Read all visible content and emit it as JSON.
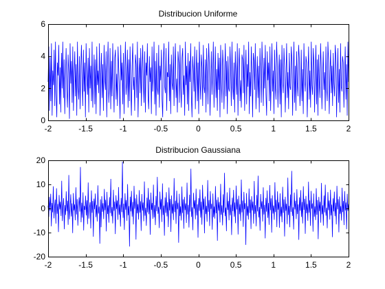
{
  "chart_data": [
    {
      "type": "line",
      "title": "Distribucion Uniforme",
      "xlabel": "",
      "ylabel": "",
      "xlim": [
        -2,
        2
      ],
      "ylim": [
        0,
        6
      ],
      "x_ticks": [
        -2,
        -1.5,
        -1,
        -0.5,
        0,
        0.5,
        1,
        1.5,
        2
      ],
      "x_tick_labels": [
        "-2",
        "-1.5",
        "-1",
        "-0.5",
        "0",
        "0.5",
        "1",
        "1.5",
        "2"
      ],
      "y_ticks": [
        0,
        2,
        4,
        6
      ],
      "y_tick_labels": [
        "0",
        "2",
        "4",
        "6"
      ],
      "grid": false,
      "legend": "none",
      "series_color": "#0000ff",
      "series": [
        {
          "x_range": [
            -2,
            2
          ],
          "values": [
            2.4,
            4.6,
            0.6,
            3.9,
            1.2,
            4.8,
            0.3,
            3.1,
            2.2,
            4.4,
            0.9,
            4.9,
            1.7,
            0.2,
            3.6,
            2.8,
            4.7,
            1.0,
            3.3,
            0.5,
            4.2,
            2.0,
            4.9,
            1.4,
            3.8,
            0.4,
            2.6,
            4.5,
            1.9,
            0.8,
            4.1,
            3.0,
            0.1,
            4.8,
            2.3,
            3.7,
            1.1,
            4.6,
            0.6,
            2.9,
            4.3,
            1.5,
            3.5,
            0.3,
            4.9,
            2.1,
            1.3,
            4.0,
            0.7,
            3.2,
            4.7,
            2.5,
            0.9,
            4.4,
            1.8,
            3.6,
            0.2,
            4.8,
            2.7,
            1.6,
            3.9,
            0.5,
            4.5,
            2.0,
            3.4,
            1.2,
            4.9,
            0.8,
            2.4,
            4.1,
            1.0,
            3.8,
            0.4,
            4.6,
            2.2,
            3.1,
            1.7,
            4.8,
            0.3,
            2.8,
            4.2,
            1.4,
            3.5,
            0.6,
            4.7,
            2.6,
            1.9,
            4.3,
            0.2,
            3.3,
            4.9,
            1.1,
            2.0,
            4.5,
            0.7,
            3.7,
            1.5,
            4.8,
            2.4,
            0.5,
            3.9,
            4.4,
            1.3,
            2.9,
            0.9,
            4.6,
            3.2,
            1.8,
            0.1,
            4.7,
            2.5,
            3.6,
            1.0,
            4.2,
            0.4,
            3.0,
            4.9,
            1.6,
            2.3,
            4.4,
            0.8,
            3.8,
            1.2,
            4.6,
            2.1,
            0.3,
            3.4,
            4.8,
            1.9,
            2.7,
            0.6,
            4.1,
            3.5,
            1.4,
            4.9,
            0.2,
            2.6,
            3.9,
            1.7,
            4.5,
            0.9,
            3.1,
            4.7,
            2.2,
            1.1,
            4.3,
            0.5,
            3.6,
            2.8,
            4.8,
            1.5,
            0.7,
            4.0,
            2.4,
            3.3,
            0.4,
            4.6,
            1.8,
            2.9,
            4.9,
            1.0,
            3.7,
            0.3,
            4.2,
            2.0,
            1.6,
            4.7,
            0.8,
            3.4,
            2.5,
            4.4,
            1.3,
            0.2,
            3.8,
            4.8,
            2.1,
            1.7,
            4.5,
            0.6,
            3.0,
            2.7,
            4.9,
            1.2,
            3.5,
            0.4,
            4.1,
            2.3,
            1.9,
            4.6,
            0.9,
            3.2,
            4.8,
            1.4,
            2.6,
            0.5,
            4.3,
            3.6,
            1.1,
            4.7,
            2.0,
            0.8,
            3.9,
            4.5,
            1.6,
            2.8,
            0.3,
            4.9,
            2.2,
            3.4,
            1.0,
            4.2,
            0.6,
            3.7,
            2.4,
            4.8,
            1.5,
            0.2,
            4.0,
            3.1,
            1.8,
            4.6,
            0.7,
            2.9,
            4.4,
            1.2,
            3.6,
            0.4,
            4.9,
            2.5,
            1.3,
            4.1,
            3.3,
            0.9,
            4.7,
            2.1,
            1.7,
            3.8,
            0.5,
            4.5,
            2.7,
            1.0,
            4.8,
            3.5,
            0.3,
            2.3,
            4.3,
            1.6,
            3.0,
            4.9,
            0.8,
            2.6,
            4.6,
            1.4,
            3.2,
            0.6,
            4.2,
            1.9,
            3.9,
            0.2,
            4.7,
            2.4,
            1.1,
            4.4,
            3.4,
            0.7,
            2.8,
            4.8,
            1.5,
            3.7,
            0.4,
            4.0,
            2.0,
            1.8,
            4.6,
            3.1,
            0.9,
            4.9,
            2.2,
            1.3,
            3.6,
            0.5,
            4.3,
            2.7,
            1.6,
            4.8,
            0.3,
            3.3,
            4.5,
            1.2,
            2.5,
            0.8,
            4.1,
            3.8,
            1.7,
            4.7,
            0.6,
            2.9,
            4.4,
            1.0,
            3.5,
            2.1,
            4.9,
            0.4,
            3.0,
            1.5,
            4.6,
            2.6,
            0.2,
            4.2,
            3.7,
            1.9,
            4.8,
            0.7,
            2.3,
            4.0,
            1.4,
            3.4,
            0.5,
            4.5,
            2.8,
            1.1,
            4.9,
            3.2,
            0.9,
            3.9,
            2.0,
            4.7,
            1.6,
            0.3,
            4.3,
            2.5,
            3.6,
            1.2,
            4.6,
            0.6,
            2.7,
            4.8,
            1.8,
            3.1,
            0.4,
            4.4,
            2.2,
            1.3,
            4.9,
            3.5,
            0.8,
            2.9,
            4.1,
            1.0,
            3.8,
            0.2,
            4.7,
            2.4,
            1.7,
            4.5,
            3.3,
            0.5,
            2.6,
            4.8,
            1.4,
            3.0,
            0.7,
            4.2,
            2.1,
            1.9,
            4.6,
            3.7,
            0.3,
            2.8,
            4.9,
            1.1,
            3.4,
            0.6,
            4.3,
            2.3,
            1.5,
            4.7,
            3.9,
            0.9,
            2.0,
            4.4,
            1.2,
            3.2,
            0.4,
            4.8,
            2.5,
            1.8,
            4.0,
            3.6,
            0.2,
            2.7,
            4.6,
            1.3,
            3.1,
            0.8,
            4.9,
            2.2,
            1.6,
            4.5,
            3.5,
            0.5,
            2.9,
            4.7,
            1.0,
            3.8,
            0.3,
            4.1,
            2.4,
            1.4,
            4.8,
            3.3,
            0.7,
            2.6,
            4.3,
            1.9,
            3.0,
            0.6,
            4.6,
            2.0,
            1.2,
            4.9,
            3.7,
            0.4,
            2.8,
            4.4,
            1.7,
            3.4,
            0.9,
            4.2,
            2.3,
            1.5,
            4.7,
            3.9,
            0.2,
            2.5,
            4.5,
            1.1,
            3.2,
            0.5,
            4.8,
            2.1,
            1.8,
            4.0,
            3.6,
            0.8,
            2.7,
            4.6,
            1.3,
            3.5,
            0.3,
            4.9,
            2.4
          ]
        }
      ]
    },
    {
      "type": "line",
      "title": "Distribucion Gaussiana",
      "xlabel": "",
      "ylabel": "",
      "xlim": [
        -2,
        2
      ],
      "ylim": [
        -20,
        20
      ],
      "x_ticks": [
        -2,
        -1.5,
        -1,
        -0.5,
        0,
        0.5,
        1,
        1.5,
        2
      ],
      "x_tick_labels": [
        "-2",
        "-1.5",
        "-1",
        "-0.5",
        "0",
        "0.5",
        "1",
        "1.5",
        "2"
      ],
      "y_ticks": [
        -20,
        -10,
        0,
        10,
        20
      ],
      "y_tick_labels": [
        "-20",
        "-10",
        "0",
        "10",
        "20"
      ],
      "grid": false,
      "legend": "none",
      "series_color": "#0000ff",
      "series": [
        {
          "x_range": [
            -2,
            2
          ],
          "values": [
            1.2,
            -3.5,
            4.8,
            -0.9,
            6.1,
            -7.4,
            2.3,
            -1.6,
            9.2,
            -4.1,
            0.5,
            3.7,
            -6.3,
            8.4,
            -2.2,
            1.9,
            -9.8,
            5.6,
            -0.4,
            2.8,
            -3.1,
            11.5,
            -5.2,
            0.7,
            4.3,
            -8.6,
            1.4,
            -2.7,
            7.1,
            -1.1,
            3.2,
            -6.8,
            13.9,
            -4.5,
            0.2,
            5.9,
            -3.3,
            2.1,
            -10.2,
            6.4,
            -0.8,
            1.7,
            -4.9,
            8.8,
            -2.5,
            3.9,
            -7.1,
            0.9,
            4.6,
            -1.3,
            17.2,
            -5.7,
            2.4,
            -3.8,
            6.7,
            -9.1,
            1.1,
            -0.6,
            5.3,
            -2.9,
            3.4,
            -6.5,
            10.8,
            -4.2,
            0.4,
            2.6,
            -8.3,
            7.5,
            -1.8,
            3.1,
            -11.7,
            4.1,
            -0.3,
            6.2,
            -3.6,
            1.5,
            -5.4,
            9.6,
            -2.1,
            0.8,
            -14.6,
            3.8,
            -7.8,
            5.1,
            -1.4,
            2.2,
            -4.4,
            8.1,
            -0.7,
            3.6,
            -9.5,
            6.9,
            -2.3,
            1.3,
            -5.9,
            4.7,
            -1.9,
            12.3,
            -3.2,
            0.6,
            -6.2,
            7.8,
            -1.0,
            2.9,
            -10.6,
            5.5,
            -0.2,
            3.3,
            -4.7,
            8.9,
            -2.6,
            1.6,
            -7.5,
            4.4,
            -1.5,
            19.4,
            -3.9,
            2.0,
            -8.9,
            6.3,
            -0.5,
            3.5,
            -5.1,
            10.1,
            -2.8,
            1.0,
            -15.8,
            4.9,
            -1.2,
            7.3,
            -3.4,
            2.7,
            -6.6,
            9.4,
            -0.1,
            4.2,
            -12.9,
            5.8,
            -2.0,
            1.8,
            -4.6,
            7.6,
            -1.7,
            3.0,
            -9.3,
            6.0,
            -0.9,
            2.5,
            -5.3,
            11.2,
            -3.0,
            0.3,
            -7.2,
            4.5,
            -1.6,
            8.5,
            -2.4,
            3.7,
            -10.9,
            6.6,
            -0.6,
            2.3,
            -4.3,
            9.9,
            -3.7,
            1.4,
            -6.9,
            5.2,
            -1.1,
            13.1,
            -2.2,
            0.7,
            -8.1,
            7.0,
            -0.4,
            3.9,
            -5.6,
            10.4,
            -2.7,
            1.2,
            -11.3,
            4.6,
            -1.8,
            6.8,
            -3.3,
            2.6,
            -7.7,
            8.7,
            -0.8,
            4.0,
            -9.7,
            5.4,
            -2.1,
            1.9,
            -4.8,
            12.6,
            -1.5,
            3.2,
            -6.4,
            7.4,
            -0.3,
            2.4,
            -14.2,
            6.1,
            -3.1,
            0.9,
            -5.0,
            9.1,
            -1.9,
            3.8,
            -8.4,
            4.8,
            -0.7,
            2.1,
            -6.0,
            10.7,
            -2.5,
            1.5,
            -7.9,
            5.7,
            -1.3,
            16.5,
            -3.5,
            0.5,
            -9.0,
            6.5,
            -0.1,
            3.4,
            -4.5,
            8.2,
            -2.9,
            1.7,
            -12.1,
            4.3,
            -1.0,
            7.9,
            -3.8,
            2.8,
            -6.7,
            9.8,
            -0.5,
            4.1,
            -10.3,
            5.0,
            -2.3,
            1.1,
            -5.5,
            11.8,
            -1.4,
            3.5,
            -7.3,
            7.2,
            -0.2,
            2.0,
            -8.8,
            6.2,
            -3.6,
            0.8,
            -4.2,
            9.3,
            -2.0,
            3.6,
            -13.4,
            4.7,
            -0.9,
            2.7,
            -5.8,
            10.2,
            -2.6,
            1.3,
            -7.0,
            5.9,
            -1.7,
            14.8,
            -3.2,
            0.4,
            -9.4,
            6.7,
            -0.6,
            3.1,
            -4.9,
            8.6,
            -2.8,
            1.6,
            -11.0,
            4.5,
            -1.1,
            7.7,
            -3.4,
            2.5,
            -6.1,
            9.5,
            -0.4,
            3.9,
            -10.8,
            5.3,
            -2.4,
            1.8,
            -5.2,
            12.0,
            -1.6,
            3.3,
            -7.6,
            6.9,
            -0.3,
            2.2,
            -15.1,
            6.4,
            -3.0,
            1.0,
            -4.6,
            8.3,
            -1.9,
            3.7,
            -8.5,
            5.1,
            -0.8,
            2.9,
            -6.3,
            11.4,
            -2.2,
            1.4,
            -7.4,
            5.6,
            -1.2,
            13.6,
            -3.7,
            0.6,
            -9.2,
            6.0,
            -0.2,
            3.0,
            -5.4,
            8.8,
            -2.5,
            1.5,
            -12.4,
            4.4,
            -1.3,
            7.5,
            -3.9,
            2.3,
            -6.8,
            9.7,
            -0.7,
            4.2,
            -10.0,
            5.5,
            -2.1,
            1.2,
            -4.7,
            10.9,
            -1.5,
            3.6,
            -7.7,
            7.1,
            -0.5,
            2.6,
            -8.0,
            6.3,
            -3.3,
            0.7,
            -5.7,
            9.0,
            -1.8,
            3.8,
            -11.6,
            4.9,
            -1.0,
            2.0,
            -6.5,
            12.8,
            -2.7,
            1.1,
            -7.8,
            5.8,
            -1.4,
            15.6,
            -3.1,
            0.5,
            -8.7,
            6.6,
            -0.4,
            3.2,
            -4.4,
            8.0,
            -2.3,
            1.7,
            -13.0,
            4.6,
            -0.9,
            7.6,
            -3.5,
            2.7,
            -6.2,
            9.2,
            -0.6,
            4.0,
            -10.5,
            5.2,
            -2.0,
            1.9,
            -5.1,
            11.1,
            -1.7,
            3.4,
            -7.2,
            7.3,
            -0.1,
            2.1,
            -9.6,
            6.2,
            -3.4,
            0.9,
            -4.8,
            8.4,
            -2.6,
            3.5,
            -12.7,
            4.8,
            -1.1,
            2.8,
            -5.9,
            10.6,
            -2.4,
            1.3,
            -7.1,
            5.4,
            -1.6,
            9.9,
            -3.0,
            0.3,
            -8.2,
            6.8,
            -0.7,
            3.3,
            -4.6,
            7.8,
            -2.9,
            1.6,
            -11.9,
            4.2,
            -1.2,
            7.0,
            -3.2,
            2.4,
            -6.6,
            9.4,
            -0.3,
            3.9,
            -9.9,
            5.0,
            -2.2,
            1.0,
            -5.0,
            8.6,
            -1.5,
            3.1,
            -6.9,
            7.2,
            -0.8,
            2.5,
            -8.6,
            6.1,
            -1.0,
            1.8
          ]
        }
      ]
    }
  ]
}
